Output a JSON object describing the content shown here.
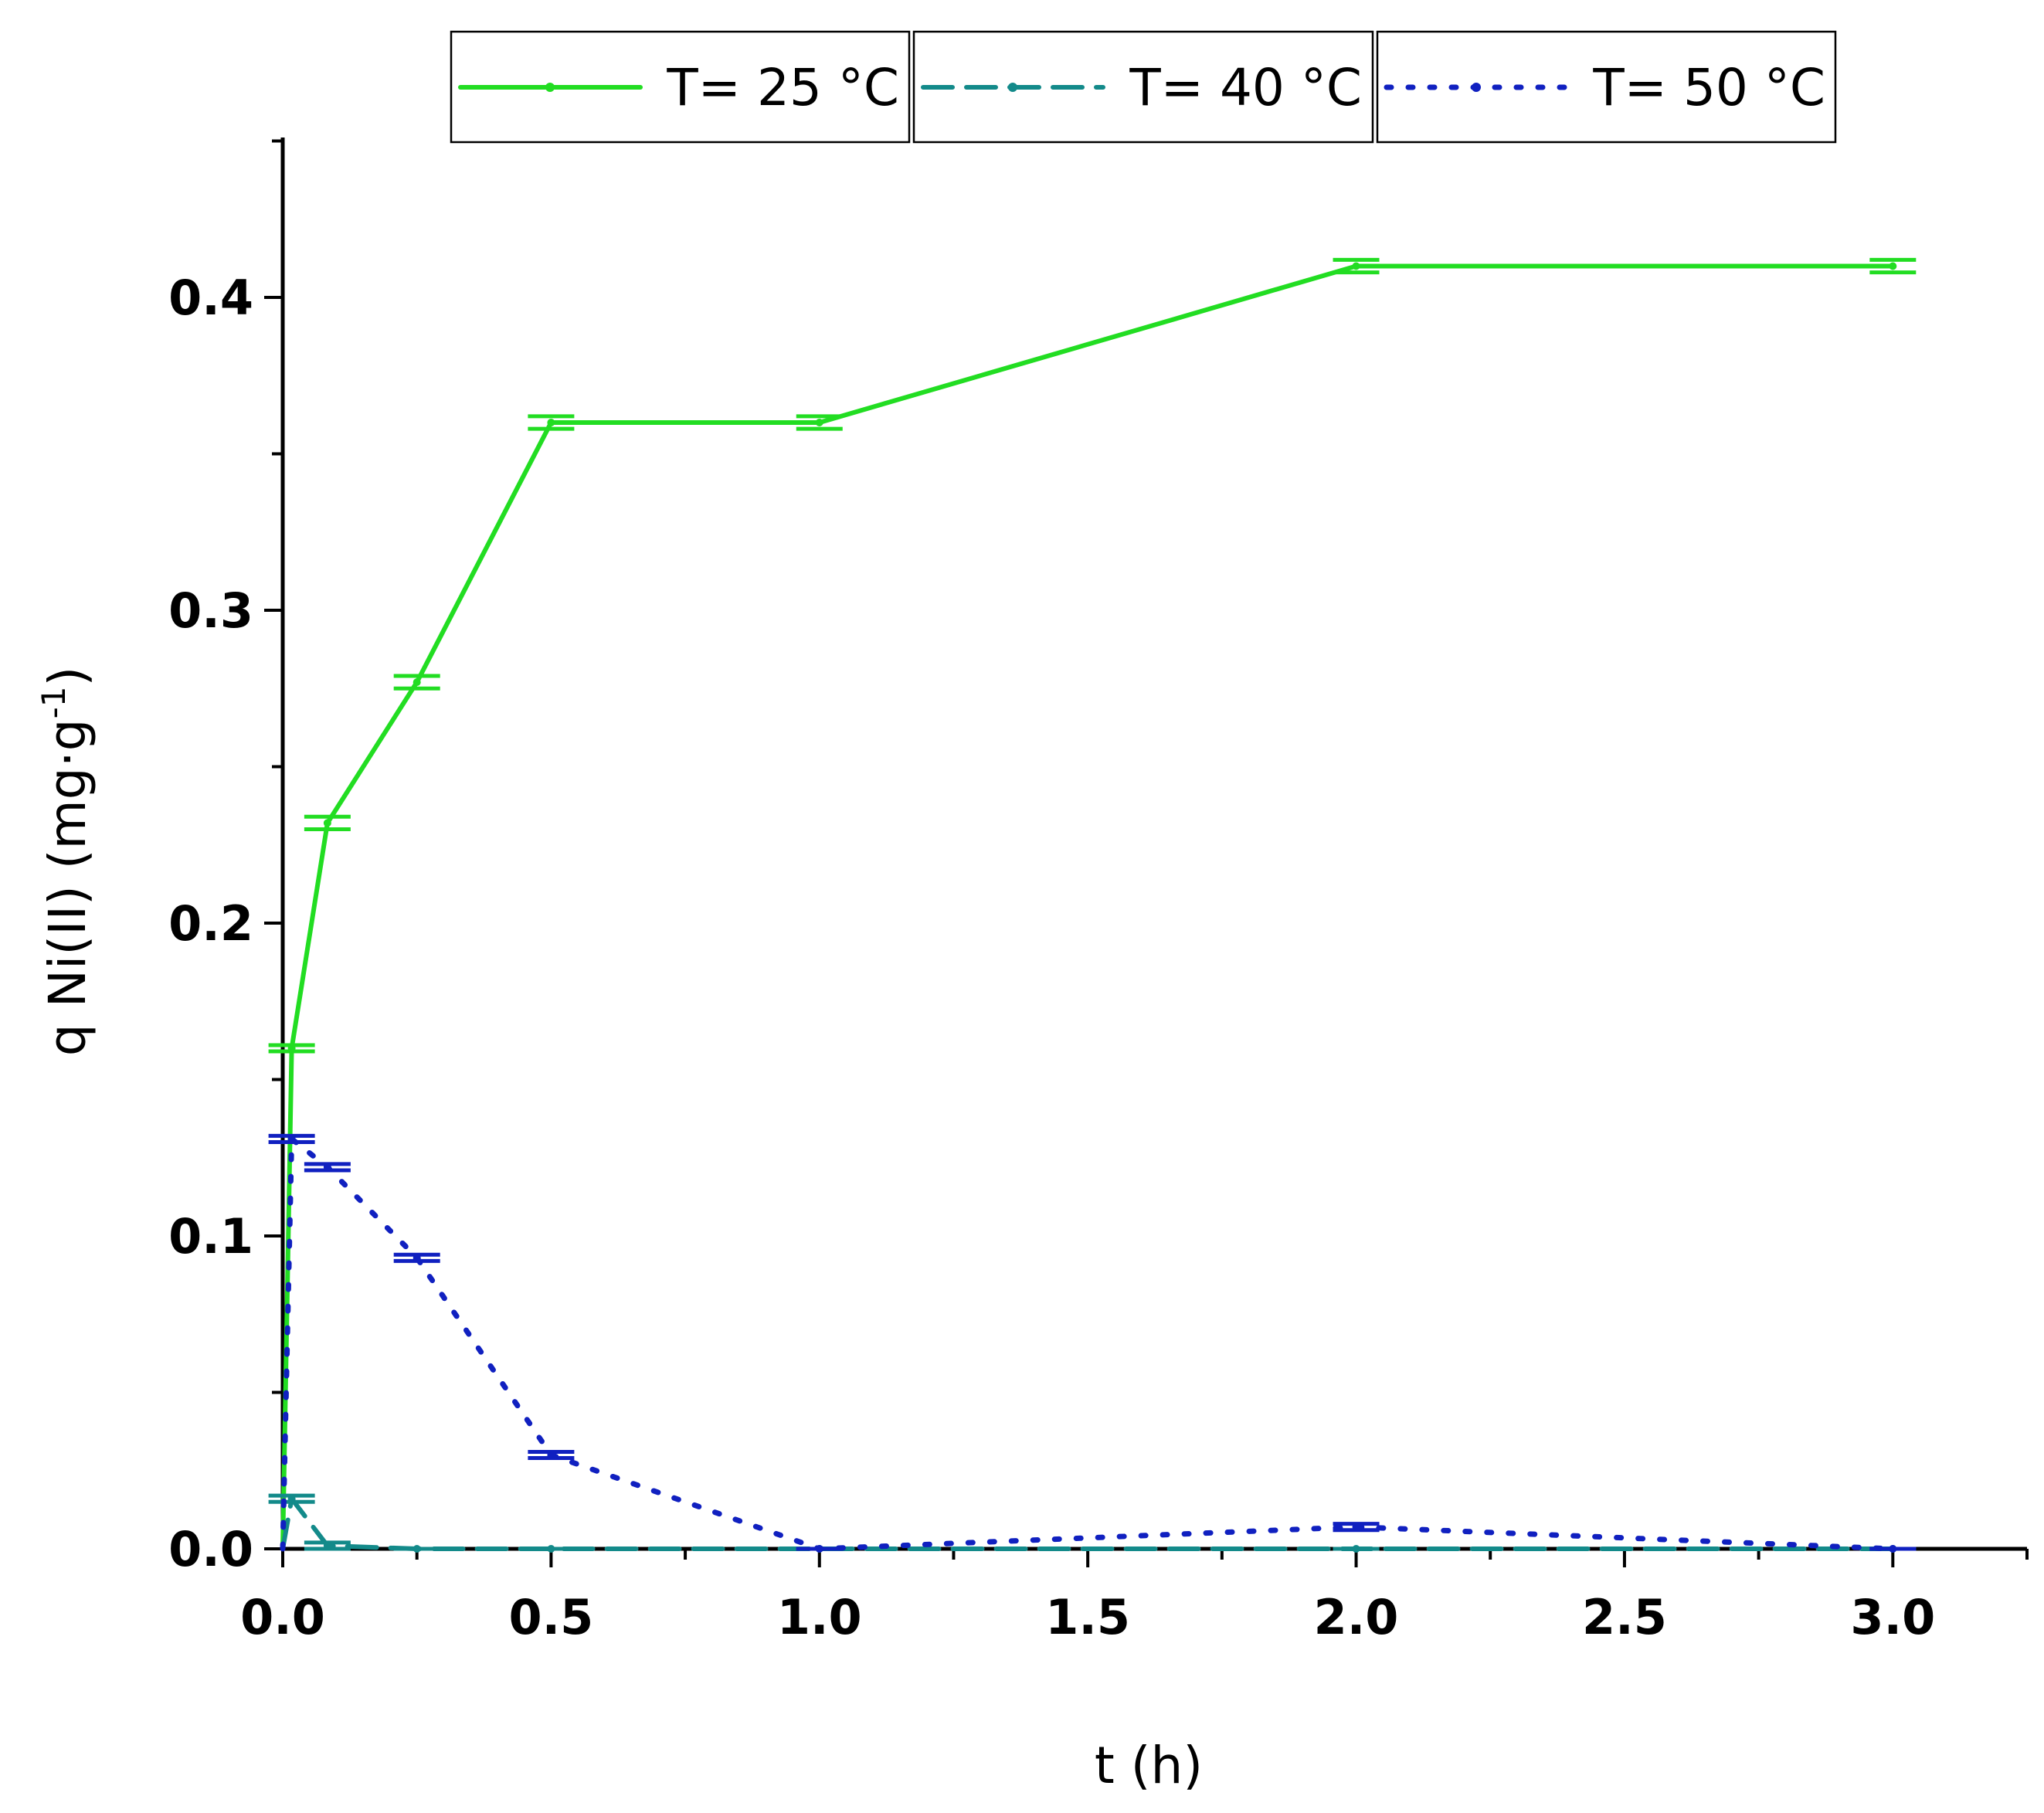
{
  "chart_data": {
    "type": "line",
    "xlabel": "t (h)",
    "ylabel": {
      "prefix": "q Ni(II) (mg·g",
      "superscript": "-1",
      "suffix": ")"
    },
    "xlim": [
      0,
      3.25
    ],
    "ylim": [
      0,
      0.45
    ],
    "x_ticks": [
      "0.0",
      "0.5",
      "1.0",
      "1.5",
      "2.0",
      "2.5",
      "3.0"
    ],
    "x_tick_values": [
      0,
      0.5,
      1,
      1.5,
      2,
      2.5,
      3
    ],
    "y_ticks": [
      "0.0",
      "0.1",
      "0.2",
      "0.3",
      "0.4"
    ],
    "y_tick_values": [
      0,
      0.1,
      0.2,
      0.3,
      0.4
    ],
    "legend_position": "top",
    "grid": false,
    "series": [
      {
        "name": "T= 25 °C",
        "color": "#22dd22",
        "style": "solid",
        "x": [
          0,
          0.0167,
          0.0833,
          0.25,
          0.5,
          1,
          2,
          3
        ],
        "y": [
          0,
          0.16,
          0.232,
          0.277,
          0.36,
          0.36,
          0.41,
          0.41
        ],
        "error": [
          0,
          0.001,
          0.002,
          0.002,
          0.002,
          0.002,
          0.002,
          0.002
        ]
      },
      {
        "name": "T= 40 °C",
        "color": "#138a8a",
        "style": "dashed",
        "x": [
          0,
          0.0167,
          0.0833,
          0.25,
          0.5,
          1,
          2,
          3
        ],
        "y": [
          0,
          0.016,
          0.001,
          0,
          0,
          0,
          0,
          0
        ],
        "error": [
          0,
          0.001,
          0.001,
          0,
          0,
          0,
          0,
          0
        ]
      },
      {
        "name": "T= 50 °C",
        "color": "#1020c0",
        "style": "dotted",
        "x": [
          0,
          0.0167,
          0.0833,
          0.25,
          0.5,
          1,
          2,
          3
        ],
        "y": [
          0,
          0.131,
          0.122,
          0.093,
          0.03,
          0,
          0.007,
          0
        ],
        "error": [
          0,
          0.001,
          0.001,
          0.001,
          0.001,
          0,
          0.001,
          0
        ]
      }
    ]
  }
}
